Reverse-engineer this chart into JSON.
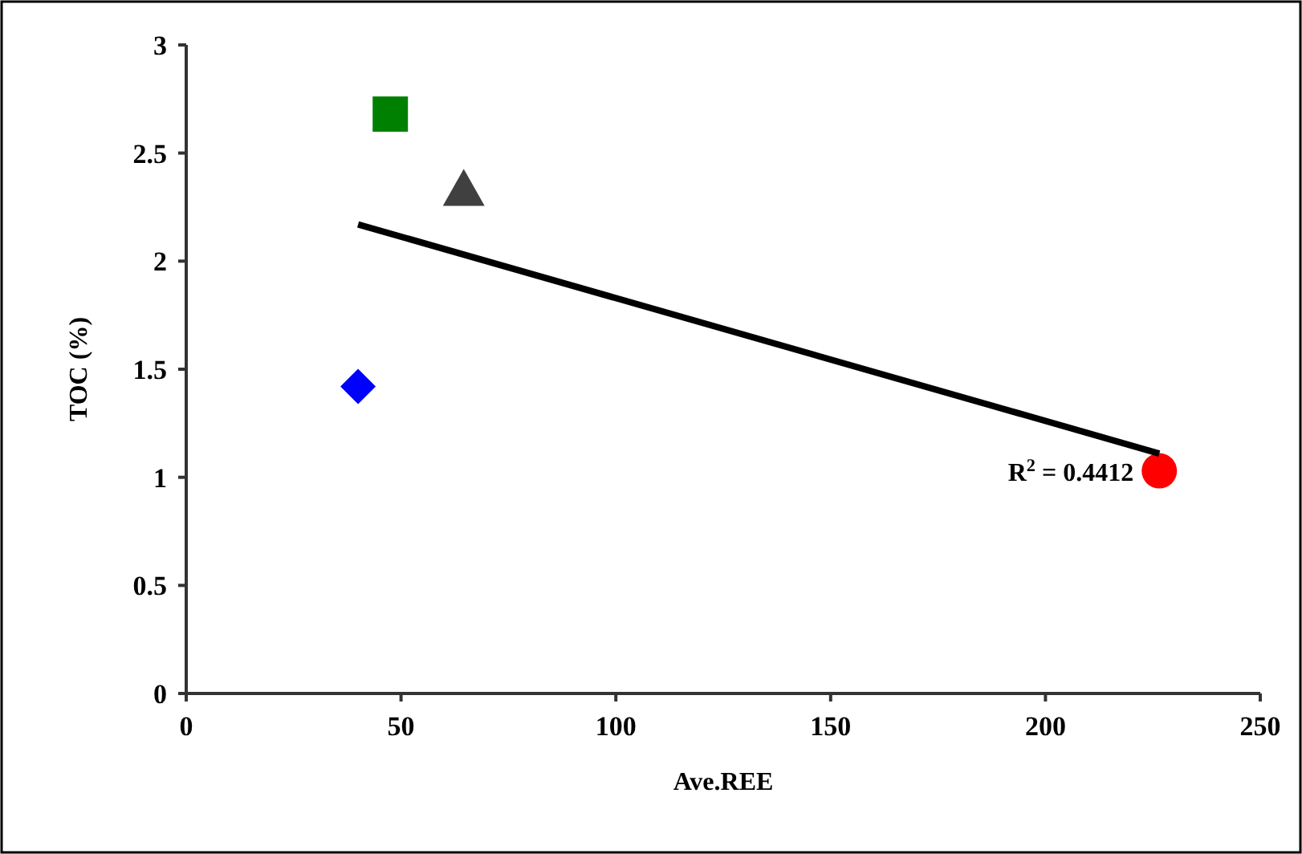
{
  "chart_data": {
    "type": "scatter",
    "xlabel": "Ave.REE",
    "ylabel": "TOC (%)",
    "xlim": [
      0,
      250
    ],
    "xticks": [
      0,
      50,
      100,
      150,
      200,
      250
    ],
    "ylim": [
      0,
      3
    ],
    "yticks": [
      0,
      0.5,
      1,
      1.5,
      2,
      2.5,
      3
    ],
    "grid": false,
    "series": [
      {
        "color": "#0000ff",
        "marker": "diamond",
        "x": [
          40
        ],
        "values": [
          1.42
        ]
      },
      {
        "color": "#008000",
        "marker": "square",
        "x": [
          47.5
        ],
        "values": [
          2.68
        ]
      },
      {
        "color": "#404040",
        "marker": "triangle",
        "x": [
          64.6
        ],
        "values": [
          2.33
        ]
      },
      {
        "color": "#ff0000",
        "marker": "circle",
        "x": [
          226.5
        ],
        "values": [
          1.03
        ]
      },
      {
        "type": "line",
        "color": "#000000",
        "marker": "none",
        "line_style": "solid",
        "x": [
          40,
          226.5
        ],
        "values": [
          2.17,
          1.11
        ]
      }
    ],
    "annotations": [
      "R$^{2}$ = 0.4412"
    ]
  }
}
